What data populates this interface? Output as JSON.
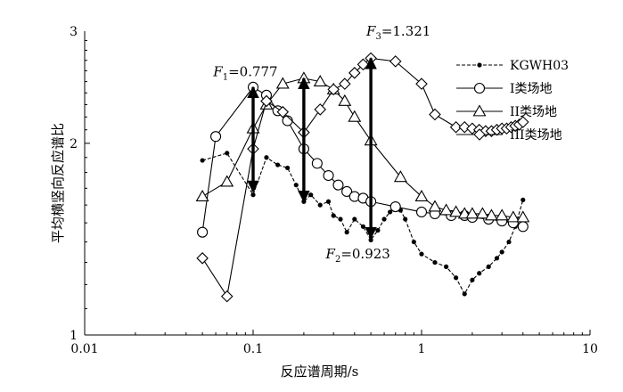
{
  "chart_data": {
    "type": "line",
    "x_scale": "log",
    "y_scale": "log",
    "xlim": [
      0.01,
      10
    ],
    "ylim": [
      1,
      3
    ],
    "x_ticks": [
      {
        "value": 0.01,
        "label": "0.01"
      },
      {
        "value": 0.1,
        "label": "0.1"
      },
      {
        "value": 1,
        "label": "1"
      },
      {
        "value": 10,
        "label": "10"
      }
    ],
    "y_ticks": [
      {
        "value": 1,
        "label": "1"
      },
      {
        "value": 2,
        "label": "2"
      },
      {
        "value": 3,
        "label": "3"
      }
    ],
    "xlabel": "反应谱周期/s",
    "ylabel": "平均横竖向反应谱比",
    "grid": false,
    "legend_position": "top-right",
    "series": [
      {
        "name": "KGWH03",
        "marker": "dot",
        "line_style": "dashed",
        "x": [
          0.05,
          0.07,
          0.1,
          0.12,
          0.14,
          0.16,
          0.18,
          0.2,
          0.22,
          0.25,
          0.28,
          0.3,
          0.33,
          0.36,
          0.4,
          0.45,
          0.5,
          0.55,
          0.6,
          0.65,
          0.7,
          0.75,
          0.8,
          0.9,
          1.0,
          1.2,
          1.4,
          1.6,
          1.8,
          2.0,
          2.2,
          2.5,
          2.8,
          3.0,
          3.3,
          3.6,
          4.0
        ],
        "y": [
          1.88,
          1.93,
          1.66,
          1.9,
          1.85,
          1.83,
          1.72,
          1.62,
          1.66,
          1.6,
          1.62,
          1.54,
          1.52,
          1.45,
          1.52,
          1.48,
          1.41,
          1.46,
          1.52,
          1.56,
          1.6,
          1.57,
          1.52,
          1.4,
          1.34,
          1.3,
          1.28,
          1.23,
          1.16,
          1.22,
          1.25,
          1.28,
          1.32,
          1.35,
          1.4,
          1.48,
          1.63
        ]
      },
      {
        "name": "I类场地",
        "marker": "circle",
        "line_style": "solid",
        "x": [
          0.05,
          0.06,
          0.1,
          0.12,
          0.14,
          0.16,
          0.2,
          0.24,
          0.28,
          0.32,
          0.36,
          0.4,
          0.45,
          0.5,
          0.7,
          1.0,
          1.2,
          1.5,
          1.8,
          2.0,
          2.5,
          3.0,
          3.5,
          4.0
        ],
        "y": [
          1.45,
          2.05,
          2.45,
          2.38,
          2.25,
          2.17,
          1.96,
          1.86,
          1.78,
          1.72,
          1.68,
          1.65,
          1.64,
          1.62,
          1.59,
          1.56,
          1.55,
          1.54,
          1.54,
          1.53,
          1.52,
          1.51,
          1.5,
          1.48
        ]
      },
      {
        "name": "II类场地",
        "marker": "triangle",
        "line_style": "solid",
        "x": [
          0.05,
          0.07,
          0.1,
          0.12,
          0.15,
          0.2,
          0.25,
          0.3,
          0.35,
          0.4,
          0.5,
          0.75,
          1.0,
          1.2,
          1.4,
          1.6,
          1.8,
          2.0,
          2.3,
          2.6,
          3.0,
          3.5,
          4.0
        ],
        "y": [
          1.65,
          1.74,
          2.11,
          2.3,
          2.48,
          2.53,
          2.5,
          2.43,
          2.33,
          2.2,
          2.02,
          1.77,
          1.65,
          1.59,
          1.57,
          1.56,
          1.55,
          1.55,
          1.55,
          1.54,
          1.54,
          1.53,
          1.53
        ]
      },
      {
        "name": "III类场地",
        "marker": "diamond",
        "line_style": "solid",
        "x": [
          0.05,
          0.07,
          0.1,
          0.12,
          0.15,
          0.2,
          0.25,
          0.3,
          0.35,
          0.4,
          0.45,
          0.5,
          0.7,
          1.0,
          1.2,
          1.6,
          1.8,
          2.0,
          2.2,
          2.4,
          2.6,
          2.8,
          3.0,
          3.2,
          3.4,
          3.6,
          3.8,
          4.0
        ],
        "y": [
          1.32,
          1.15,
          1.96,
          2.33,
          2.24,
          2.08,
          2.26,
          2.43,
          2.48,
          2.58,
          2.66,
          2.72,
          2.69,
          2.48,
          2.22,
          2.12,
          2.12,
          2.11,
          2.1,
          2.09,
          2.09,
          2.1,
          2.11,
          2.11,
          2.12,
          2.13,
          2.14,
          2.16
        ]
      }
    ],
    "annotations": [
      {
        "name": "F1",
        "subscript": "1",
        "value_text": "=0.777",
        "x": 0.1,
        "y_top": 2.45,
        "y_bottom": 1.68,
        "label_x": 0.058,
        "label_y": 2.55
      },
      {
        "name": "F2",
        "subscript": "2",
        "value_text": "=0.923",
        "x": 0.2,
        "y_top": 2.53,
        "y_bottom": 1.62,
        "label_x": 0.27,
        "label_y": 1.32
      },
      {
        "name": "F3",
        "subscript": "3",
        "value_text": "=1.321",
        "x": 0.5,
        "y_top": 2.72,
        "y_bottom": 1.42,
        "label_x": 0.47,
        "label_y": 2.95
      }
    ]
  }
}
